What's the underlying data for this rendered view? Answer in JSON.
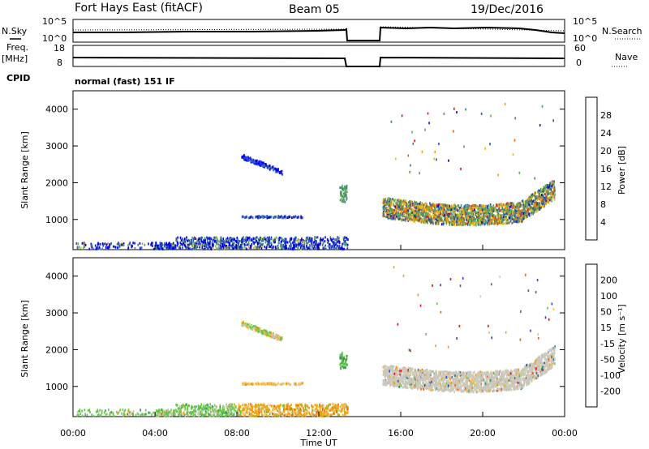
{
  "header": {
    "station": "Fort Hays East (fitACF)",
    "beam": "Beam 05",
    "date": "19/Dec/2016",
    "mode": "normal (fast) 151 IF"
  },
  "left_labels": {
    "nsky": "N.Sky",
    "freq": "Freq.",
    "freq_unit": "[MHz]",
    "cpid": "CPID"
  },
  "right_labels": {
    "nsearch": "N.Search",
    "nave": "Nave"
  },
  "top_axes": {
    "noise_ticks": [
      "10^5",
      "10^0"
    ],
    "noise_right_ticks": [
      "10^5",
      "10^0"
    ],
    "freq_ticks": [
      "18",
      "8"
    ],
    "nave_ticks": [
      "60",
      "0"
    ]
  },
  "colors": {
    "power": [
      "#0000ff",
      "#2a4fb8",
      "#3f7f8f",
      "#4f9a6f",
      "#55b04a",
      "#e8c000",
      "#f29a00",
      "#f06000",
      "#ff0000"
    ],
    "velocity": [
      "#2b3fc8",
      "#2e6e8c",
      "#3f8f5f",
      "#5fc843",
      "#c8c8c0",
      "#f0c060",
      "#f0a000",
      "#f06000",
      "#ff0000"
    ]
  },
  "chart_data": [
    {
      "type": "heatmap",
      "name": "power",
      "ylabel": "Slant Range [km]",
      "yticks": [
        "4000",
        "3000",
        "2000",
        "1000"
      ],
      "ytick_values": [
        4000,
        3000,
        2000,
        1000
      ],
      "ylim": [
        180,
        4500
      ],
      "xlim": [
        0,
        24
      ],
      "colorbar_label": "Power [dB]",
      "colorbar_ticks": [
        "28",
        "24",
        "20",
        "16",
        "12",
        "8",
        "4"
      ],
      "colorbar_range": [
        0,
        30
      ]
    },
    {
      "type": "heatmap",
      "name": "velocity",
      "ylabel": "Slant Range [km]",
      "yticks": [
        "4000",
        "3000",
        "2000",
        "1000"
      ],
      "ytick_values": [
        4000,
        3000,
        2000,
        1000
      ],
      "ylim": [
        180,
        4500
      ],
      "xlim": [
        0,
        24
      ],
      "xlabel": "Time UT",
      "xticks": [
        "00:00",
        "04:00",
        "08:00",
        "12:00",
        "16:00",
        "20:00",
        "00:00"
      ],
      "xtick_values": [
        0,
        4,
        8,
        12,
        16,
        20,
        24
      ],
      "colorbar_label": "Velocity [m s⁻¹]",
      "colorbar_ticks": [
        "200",
        "100",
        "50",
        "15",
        "-15",
        "-50",
        "-100",
        "-200"
      ],
      "data_gap_hours": [
        13.5,
        15.1
      ]
    }
  ]
}
